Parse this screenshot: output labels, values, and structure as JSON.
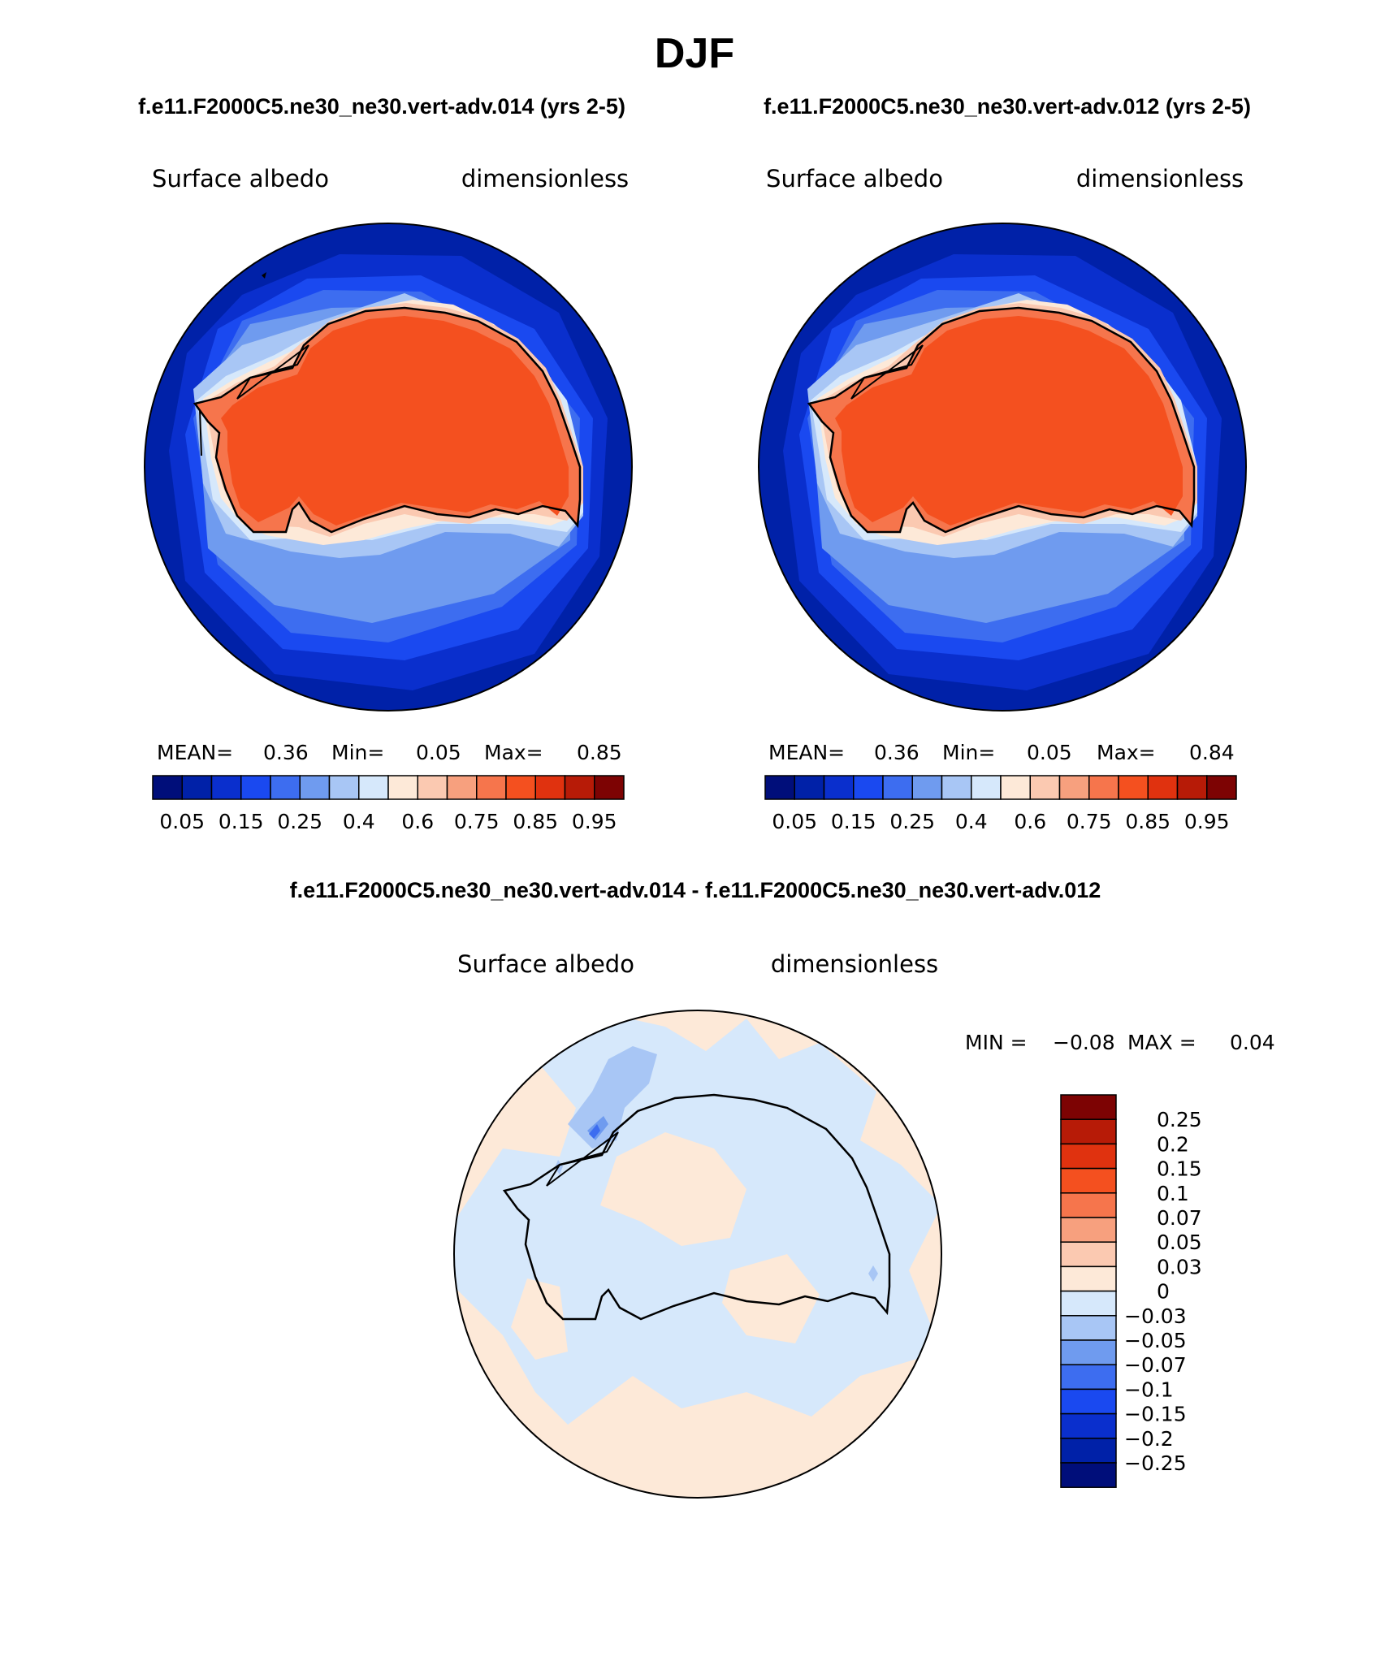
{
  "title": "DJF",
  "panels": [
    {
      "case": "f.e11.F2000C5.ne30_ne30.vert-adv.014 (yrs 2-5)",
      "field": "Surface albedo",
      "units": "dimensionless",
      "stats": {
        "mean_label": "MEAN=",
        "mean": "0.36",
        "min_label": "Min=",
        "min": "0.05",
        "max_label": "Max=",
        "max": "0.85"
      }
    },
    {
      "case": "f.e11.F2000C5.ne30_ne30.vert-adv.012 (yrs 2-5)",
      "field": "Surface albedo",
      "units": "dimensionless",
      "stats": {
        "mean_label": "MEAN=",
        "mean": "0.36",
        "min_label": "Min=",
        "min": "0.05",
        "max_label": "Max=",
        "max": "0.84"
      }
    }
  ],
  "abs_colorbar": {
    "colors": [
      "#000e7a",
      "#0021a8",
      "#0a2fcd",
      "#1a49f0",
      "#3d6df0",
      "#6f9bef",
      "#a8c6f5",
      "#d6e8fb",
      "#fde9d8",
      "#fbc9b1",
      "#f7a07e",
      "#f6754c",
      "#f4501f",
      "#e0320f",
      "#b71b07",
      "#7d0303"
    ],
    "tick_labels": [
      "0.05",
      "0.15",
      "0.25",
      "0.4",
      "0.6",
      "0.75",
      "0.85",
      "0.95"
    ]
  },
  "diff": {
    "title": "f.e11.F2000C5.ne30_ne30.vert-adv.014 - f.e11.F2000C5.ne30_ne30.vert-adv.012",
    "field": "Surface albedo",
    "units": "dimensionless",
    "stats": {
      "min_label": "MIN =",
      "min": "−0.08",
      "max_label": "MAX =",
      "max": "0.04"
    },
    "colorbar": {
      "colors": [
        "#7d0303",
        "#b71b07",
        "#e0320f",
        "#f4501f",
        "#f6754c",
        "#f7a07e",
        "#fbc9b1",
        "#fde9d8",
        "#d6e8fb",
        "#a8c6f5",
        "#6f9bef",
        "#3d6df0",
        "#1a49f0",
        "#0a2fcd",
        "#0021a8",
        "#000e7a"
      ],
      "tick_labels": [
        "0.25",
        "0.2",
        "0.15",
        "0.1",
        "0.07",
        "0.05",
        "0.03",
        "0",
        "−0.03",
        "−0.05",
        "−0.07",
        "−0.1",
        "−0.15",
        "−0.2",
        "−0.25"
      ]
    }
  }
}
